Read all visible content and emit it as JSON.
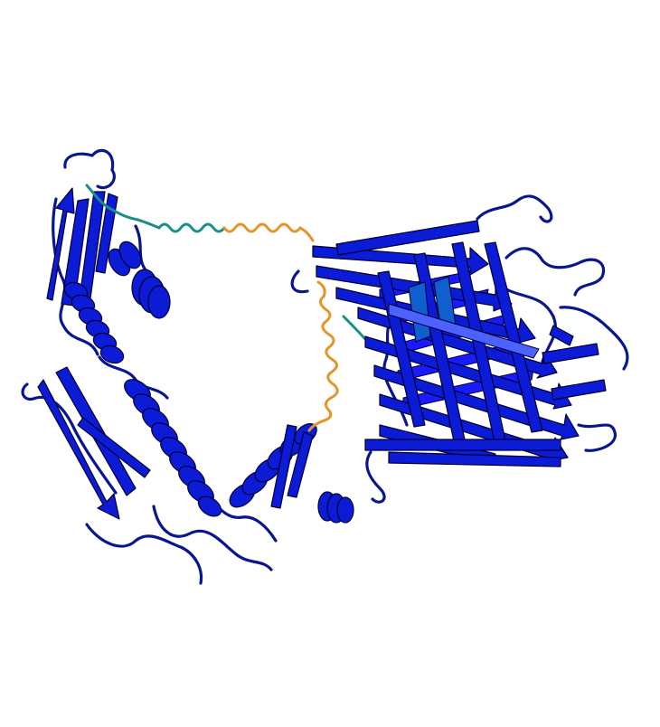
{
  "scene": {
    "background": "#ffffff",
    "palette": {
      "very_high_confidence": "#0b1bd6",
      "high_confidence": "#1a1aff",
      "coil": "#0a1590",
      "edge": "#000033",
      "medium_confidence": "#1a8f8a",
      "low_confidence": "#e3952a",
      "sheet_light": "#4b62ff"
    }
  }
}
